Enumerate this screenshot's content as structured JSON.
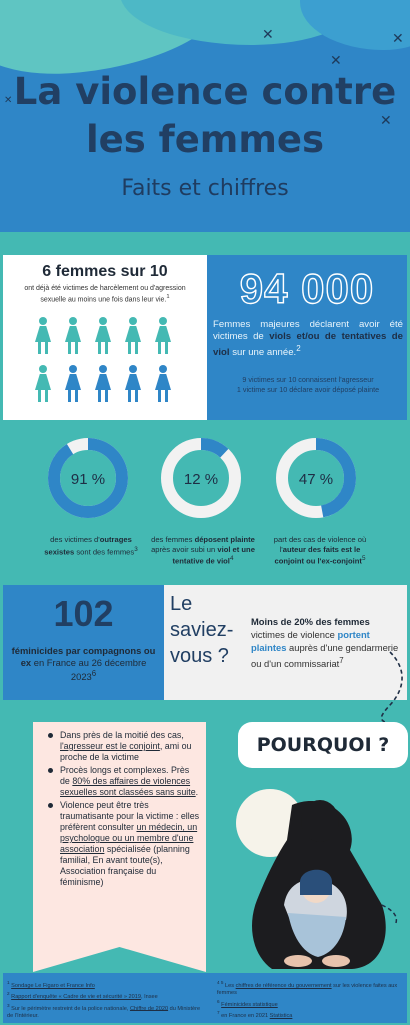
{
  "header": {
    "title_line1": "La violence contre",
    "title_line2": "les femmes",
    "subtitle": "Faits et chiffres"
  },
  "stat_left": {
    "headline": "6 femmes sur 10",
    "text": "ont déjà été victimes de harcèlement ou d'agression sexuelle au moins une fois dans leur vie.",
    "sup": "1",
    "highlighted": 6,
    "total": 10,
    "colors": {
      "highlighted": "#44b9b3",
      "other": "#2f86c7"
    }
  },
  "stat_right": {
    "number": "94 000",
    "desc_a": "Femmes majeures déclarent avoir été victimes de ",
    "desc_b": "viols et/ou de tentatives de viol",
    "desc_c": " sur une année.",
    "sup": "2",
    "note1": "9 victimes sur 10 connaissent l'agresseur",
    "note2": "1 victime sur 10 déclare avoir déposé plainte"
  },
  "donuts": [
    {
      "value": 91,
      "label": "91 %",
      "text_a": "des victimes d'",
      "text_b": "outrages sexistes",
      "text_c": " sont des femmes",
      "sup": "3"
    },
    {
      "value": 12,
      "label": "12 %",
      "text_a": "des femmes ",
      "text_b": "déposent plainte",
      "text_c": " après avoir subi un ",
      "text_d": "viol et une tentative de viol",
      "sup": "4"
    },
    {
      "value": 47,
      "label": "47 %",
      "text_a": "part des cas de violence où l'",
      "text_b": "auteur des faits est le conjoint ou l'ex-conjoint",
      "sup": "5"
    }
  ],
  "donut_colors": {
    "fill": "#2f86c7",
    "rest": "#f2f2f2",
    "center": "#44b9b3"
  },
  "feminicides": {
    "number": "102",
    "text_b": "féminicides par compagnons ou ex",
    "text_c": " en France au 26 décembre 2023",
    "sup": "6"
  },
  "saviez": {
    "title": "Le saviez-vous ?",
    "text_b": "Moins de 20% des femmes",
    "text_c": " victimes de violence ",
    "text_d": "portent plaintes",
    "text_e": " auprès d'une gendarmerie ou d'un commissariat",
    "sup": "7"
  },
  "pourquoi": {
    "button": "POURQUOI ?",
    "items": [
      {
        "a": "Dans près de la moitié des cas, ",
        "u": "l'agresseur est le conjoint",
        "b": ", ami ou proche de la victime"
      },
      {
        "a": "Procès  longs et complexes. Près de ",
        "u": "80% des affaires de violences sexuelles sont classées sans suite",
        "b": "."
      },
      {
        "a": "Violence peut être très traumatisante pour la victime : elles préfèrent consulter ",
        "u": "un médecin, un psychologue ou un membre d'une association",
        "b": " spécialisée (planning familial, En avant toute(s), Association française du féminisme)"
      }
    ]
  },
  "footnotes": {
    "left": [
      {
        "n": "1",
        "u": "Sondage Le Figaro et France Info",
        "t": ""
      },
      {
        "n": "2",
        "u": "Rapport d'enquête « Cadre de vie et sécurité » 2019",
        "t": ", Insee"
      },
      {
        "n": "3",
        "u": "",
        "t": "Sur le périmètre restreint de la police nationale, "
      },
      {
        "n": "",
        "u": "Chiffre de 2020",
        "t": " du Ministère de l'Intérieur."
      }
    ],
    "right": [
      {
        "n": "4 5",
        "t": "Les ",
        "u": "chiffres de référence du gouvernement",
        "t2": " sur les violence faites aux femmes"
      },
      {
        "n": "6",
        "t": "",
        "u": "Féminicides statistique",
        "t2": ""
      },
      {
        "n": "7",
        "t": "en France en 2021 ",
        "u": "Statistica",
        "t2": ""
      }
    ]
  }
}
